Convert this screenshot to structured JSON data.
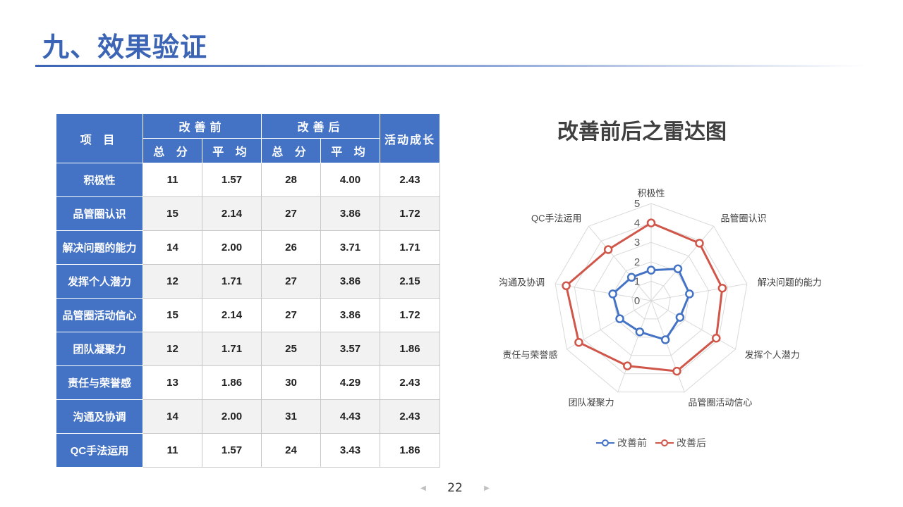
{
  "slide": {
    "title": "九、效果验证"
  },
  "table": {
    "header": {
      "item": "项 目",
      "before": "改善前",
      "after": "改善后",
      "growth": "活动成长",
      "total": "总 分",
      "average": "平 均"
    },
    "rows": [
      {
        "item": "积极性",
        "before_total": "11",
        "before_avg": "1.57",
        "after_total": "28",
        "after_avg": "4.00",
        "growth": "2.43"
      },
      {
        "item": "品管圈认识",
        "before_total": "15",
        "before_avg": "2.14",
        "after_total": "27",
        "after_avg": "3.86",
        "growth": "1.72"
      },
      {
        "item": "解决问题的能力",
        "before_total": "14",
        "before_avg": "2.00",
        "after_total": "26",
        "after_avg": "3.71",
        "growth": "1.71"
      },
      {
        "item": "发挥个人潜力",
        "before_total": "12",
        "before_avg": "1.71",
        "after_total": "27",
        "after_avg": "3.86",
        "growth": "2.15"
      },
      {
        "item": "品管圈活动信心",
        "before_total": "15",
        "before_avg": "2.14",
        "after_total": "27",
        "after_avg": "3.86",
        "growth": "1.72"
      },
      {
        "item": "团队凝聚力",
        "before_total": "12",
        "before_avg": "1.71",
        "after_total": "25",
        "after_avg": "3.57",
        "growth": "1.86"
      },
      {
        "item": "责任与荣誉感",
        "before_total": "13",
        "before_avg": "1.86",
        "after_total": "30",
        "after_avg": "4.29",
        "growth": "2.43"
      },
      {
        "item": "沟通及协调",
        "before_total": "14",
        "before_avg": "2.00",
        "after_total": "31",
        "after_avg": "4.43",
        "growth": "2.43"
      },
      {
        "item": "QC手法运用",
        "before_total": "11",
        "before_avg": "1.57",
        "after_total": "24",
        "after_avg": "3.43",
        "growth": "1.86"
      }
    ]
  },
  "chart_data": {
    "type": "radar",
    "title": "改善前后之雷达图",
    "categories": [
      "积极性",
      "品管圈认识",
      "解决问题的能力",
      "发挥个人潜力",
      "品管圈活动信心",
      "团队凝聚力",
      "责任与荣誉感",
      "沟通及协调",
      "QC手法运用"
    ],
    "series": [
      {
        "name": "改善前",
        "values": [
          1.57,
          2.14,
          2.0,
          1.71,
          2.14,
          1.71,
          1.86,
          2.0,
          1.57
        ],
        "color": "#4472c4"
      },
      {
        "name": "改善后",
        "values": [
          4.0,
          3.86,
          3.71,
          3.86,
          3.86,
          3.57,
          4.29,
          4.43,
          3.43
        ],
        "color": "#d0564a"
      }
    ],
    "rlim": [
      0,
      5
    ],
    "ticks": [
      "0",
      "1",
      "2",
      "3",
      "4",
      "5"
    ],
    "legend_position": "bottom",
    "grid": true
  },
  "pager": {
    "page": "22",
    "prev_icon": "triangle-left-icon",
    "next_icon": "triangle-right-icon"
  }
}
